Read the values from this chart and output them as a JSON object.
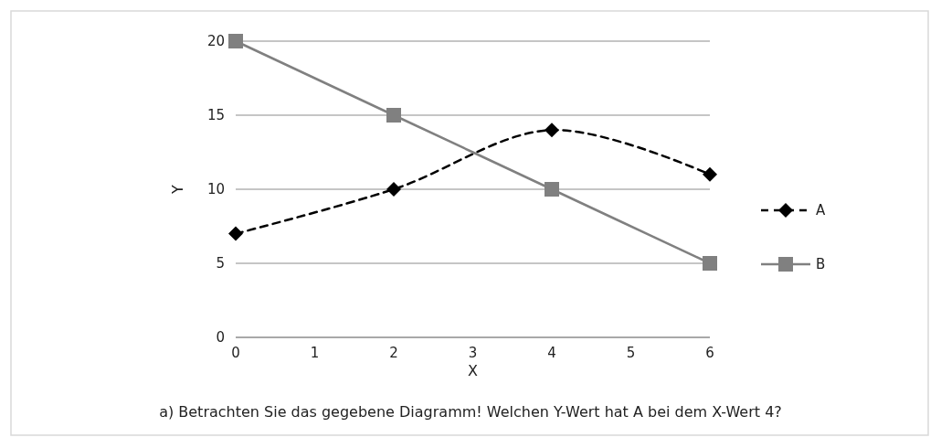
{
  "chart_data": {
    "type": "line",
    "xlabel": "X",
    "ylabel": "Y",
    "x": [
      0,
      2,
      4,
      6
    ],
    "series": [
      {
        "name": "A",
        "color": "#000000",
        "values": [
          7,
          10,
          14,
          11
        ],
        "line_style": "dashed",
        "marker": "diamond"
      },
      {
        "name": "B",
        "color": "#808080",
        "values": [
          20,
          15,
          10,
          5
        ],
        "line_style": "solid",
        "marker": "square"
      }
    ],
    "xlim": [
      0,
      6
    ],
    "xticks": [
      0,
      1,
      2,
      3,
      4,
      5,
      6
    ],
    "ylim": [
      0,
      20
    ],
    "yticks": [
      0,
      5,
      10,
      15,
      20
    ],
    "grid": "y",
    "legend": "right",
    "annotations": [
      "a) Betrachten Sie das gegebene Diagramm! Welchen Y-Wert hat A bei dem X-Wert 4?"
    ]
  }
}
